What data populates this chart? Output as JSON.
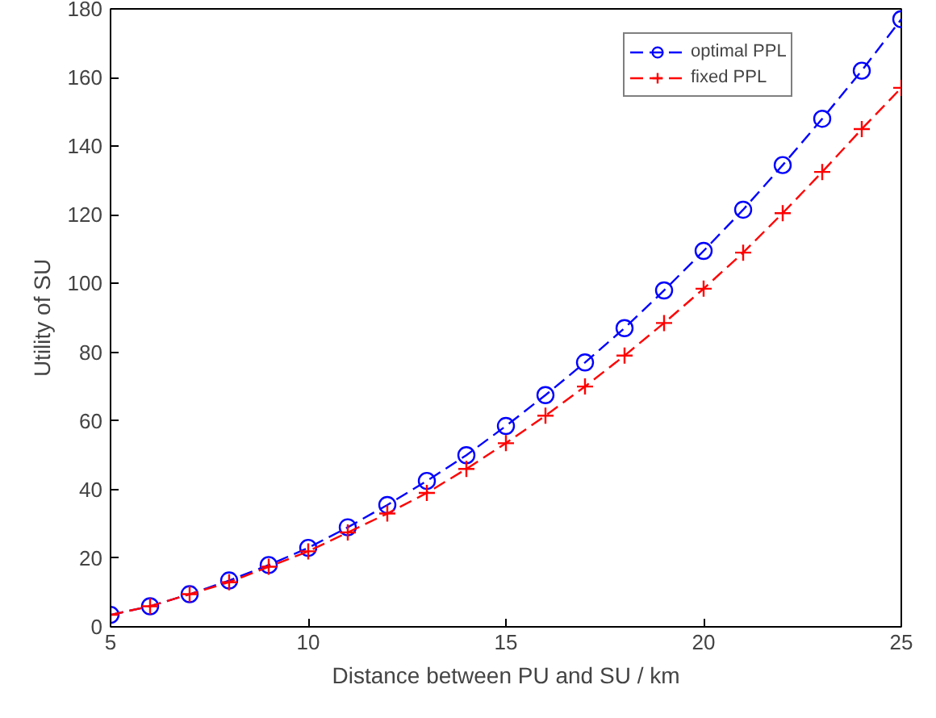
{
  "chart_data": {
    "type": "line",
    "xlabel": "Distance between PU and SU / km",
    "ylabel": "Utility of SU",
    "x": [
      5,
      6,
      7,
      8,
      9,
      10,
      11,
      12,
      13,
      14,
      15,
      16,
      17,
      18,
      19,
      20,
      21,
      22,
      23,
      24,
      25
    ],
    "series": [
      {
        "name": "optimal PPL",
        "color": "#0000ff",
        "marker": "circle",
        "values": [
          3.5,
          6,
          9.5,
          13.5,
          18,
          23,
          29,
          35.5,
          42.5,
          50,
          58.5,
          67.5,
          77,
          87,
          98,
          109.5,
          121.5,
          134.5,
          148,
          162,
          177
        ]
      },
      {
        "name": "fixed PPL",
        "color": "#ff0000",
        "marker": "cross",
        "values": [
          3.5,
          6,
          9.5,
          13,
          17.5,
          22,
          27.5,
          33,
          39,
          46,
          53.5,
          61.5,
          70,
          79,
          88.5,
          98.5,
          109,
          120.5,
          132.5,
          145,
          157
        ]
      }
    ],
    "xlim": [
      5,
      25
    ],
    "ylim": [
      0,
      180
    ],
    "xticks": [
      5,
      10,
      15,
      20,
      25
    ],
    "yticks": [
      0,
      20,
      40,
      60,
      80,
      100,
      120,
      140,
      160,
      180
    ],
    "grid": false,
    "legend": "top right",
    "line_style": "dashed"
  }
}
